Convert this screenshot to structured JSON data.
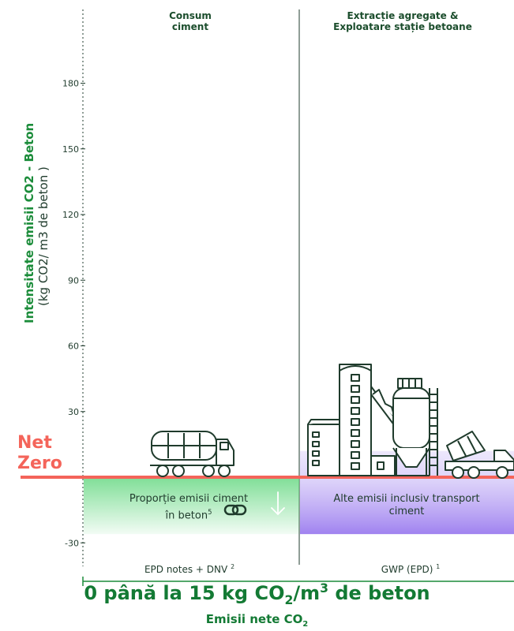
{
  "chart_data": {
    "type": "bar",
    "ylabel_bold": "Intensitate emisii CO2 - Beton",
    "ylabel_unit": "(kg CO2/ m3 de beton )",
    "ylim": [
      -35,
      200
    ],
    "y_ticks": [
      180,
      150,
      120,
      90,
      60,
      30,
      -30
    ],
    "net_zero_label": [
      "Net",
      "Zero"
    ],
    "categories": [
      {
        "title": "Consum\nciment",
        "box_label": "Proporție emisii ciment\nîn beton",
        "box_sup": "5",
        "source": "EPD notes + DNV",
        "source_sup": "2",
        "value_range": [
          -26,
          0
        ],
        "color": "#5fd67c"
      },
      {
        "title": "Extracție agregate &\nExploatare stație betoane",
        "box_label": "Alte emisii inclusiv transport\nciment",
        "source": "GWP (EPD)",
        "source_sup": "1",
        "value_range": [
          -26,
          12
        ],
        "color": "#a98af0"
      }
    ],
    "headline": {
      "prefix": "0 până la 15 kg CO",
      "sub": "2",
      "mid": "/m",
      "sup": "3",
      "suffix": " de beton"
    },
    "subline": {
      "prefix": "Emisii nete CO",
      "sub": "2"
    }
  },
  "colors": {
    "net_zero": "#f4645a",
    "accent_green": "#137a34",
    "line": "#1f3b2c"
  },
  "icons": [
    "cement-truck-icon",
    "chain-link-icon",
    "down-arrow-icon",
    "concrete-plant-icon",
    "concrete-mixer-truck-icon"
  ]
}
